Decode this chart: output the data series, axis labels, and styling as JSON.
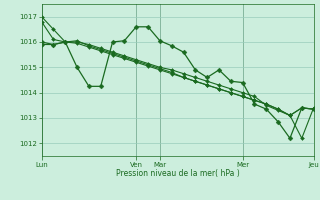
{
  "background_color": "#cceedd",
  "plot_bg_color": "#cceedd",
  "grid_color": "#99ccbb",
  "line_color": "#1a6a20",
  "marker_color": "#1a6a20",
  "xlabel": "Pression niveau de la mer( hPa )",
  "ylim": [
    1011.5,
    1017.5
  ],
  "yticks": [
    1012,
    1013,
    1014,
    1015,
    1016,
    1017
  ],
  "day_labels": [
    "Lun",
    "Ven",
    "Mar",
    "Mer",
    "Jeu"
  ],
  "day_positions": [
    0,
    8,
    10,
    17,
    23
  ],
  "n_points": 24,
  "series": [
    [
      1017.0,
      1016.5,
      1016.0,
      1016.0,
      1015.9,
      1015.75,
      1015.6,
      1015.45,
      1015.3,
      1015.15,
      1015.0,
      1014.9,
      1014.75,
      1014.6,
      1014.45,
      1014.3,
      1014.15,
      1014.0,
      1013.85,
      1013.5,
      1013.3,
      1013.1,
      1013.4,
      1013.35
    ],
    [
      1016.8,
      1016.1,
      1016.0,
      1015.95,
      1015.8,
      1015.65,
      1015.5,
      1015.35,
      1015.2,
      1015.05,
      1014.9,
      1014.75,
      1014.6,
      1014.45,
      1014.3,
      1014.15,
      1014.0,
      1013.85,
      1013.7,
      1013.55,
      1013.35,
      1013.1,
      1013.4,
      1013.35
    ],
    [
      1015.9,
      1015.9,
      1016.0,
      1016.05,
      1015.85,
      1015.7,
      1015.55,
      1015.4,
      1015.25,
      1015.1,
      1014.95,
      1014.8,
      1014.6,
      1014.45,
      1014.3,
      1014.15,
      1014.0,
      1013.85,
      1013.7,
      1013.55,
      1013.35,
      1013.1,
      1012.2,
      1013.4
    ],
    [
      1016.0,
      1015.9,
      1016.0,
      1015.0,
      1014.25,
      1014.25,
      1016.0,
      1016.05,
      1016.6,
      1016.6,
      1016.05,
      1015.85,
      1015.6,
      1014.9,
      1014.6,
      1014.9,
      1014.45,
      1014.4,
      1013.55,
      1013.35,
      1012.85,
      1012.2,
      1013.4,
      1013.35
    ]
  ],
  "figsize": [
    3.2,
    2.0
  ],
  "dpi": 100
}
